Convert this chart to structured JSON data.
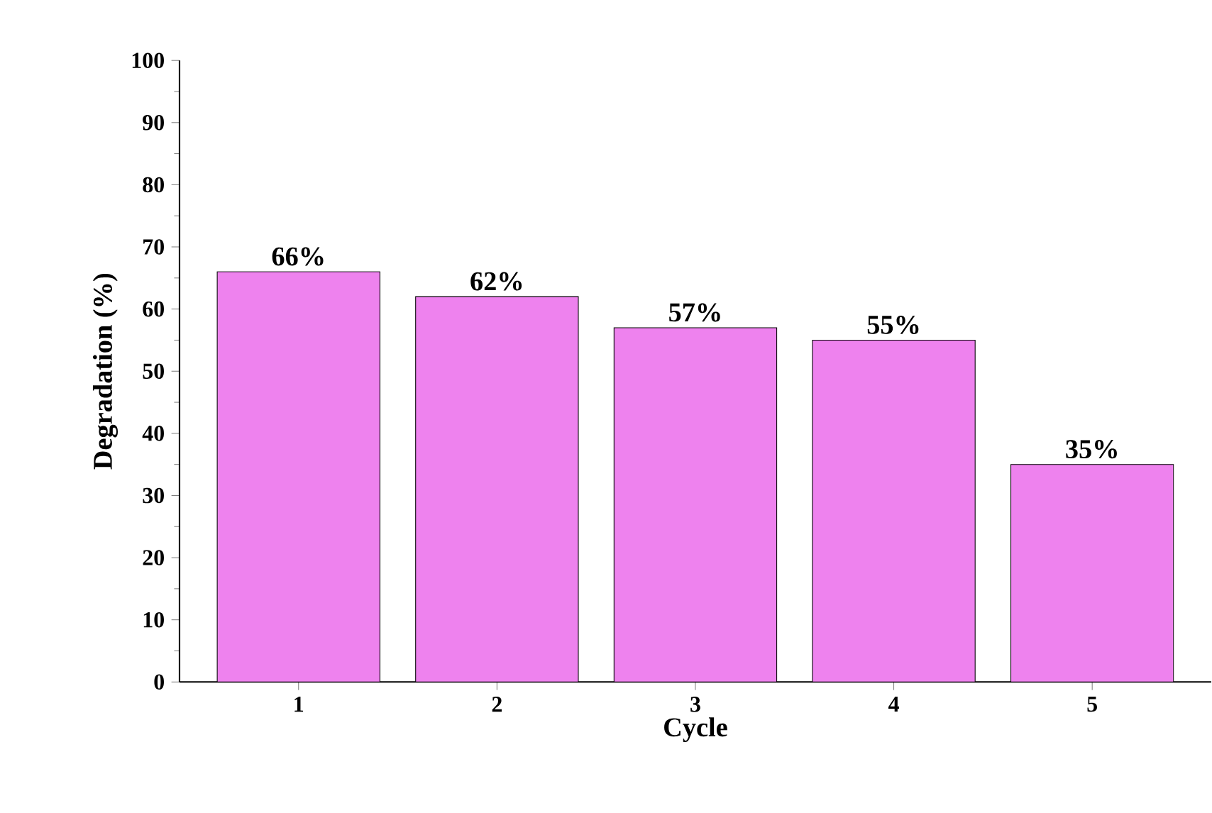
{
  "chart_data": {
    "type": "bar",
    "xlabel": "Cycle",
    "ylabel": "Degradation (%)",
    "categories": [
      "1",
      "2",
      "3",
      "4",
      "5"
    ],
    "values": [
      66,
      62,
      57,
      55,
      35
    ],
    "value_labels": [
      "66%",
      "62%",
      "57%",
      "55%",
      "35%"
    ],
    "color": "#ee82ee",
    "ylim": [
      0,
      100
    ],
    "yticks": [
      0,
      10,
      20,
      30,
      40,
      50,
      60,
      70,
      80,
      90,
      100
    ],
    "grid": false
  }
}
